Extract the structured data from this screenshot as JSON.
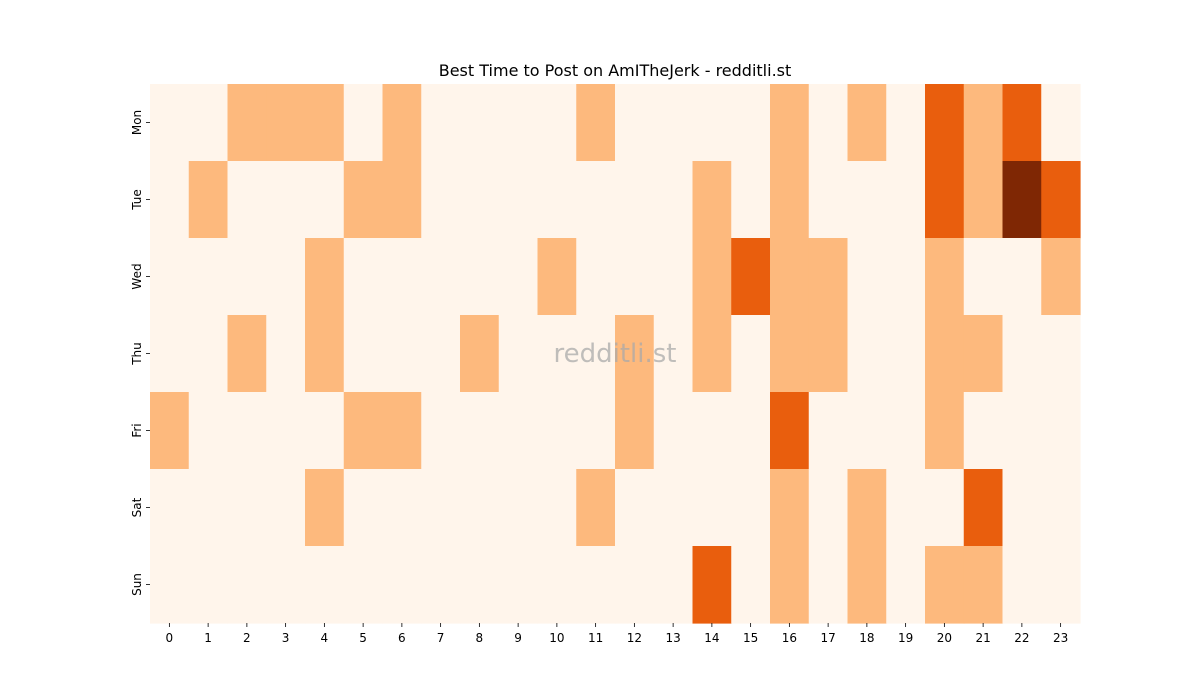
{
  "chart_data": {
    "type": "heatmap",
    "title": "Best Time to Post on AmITheJerk - redditli.st",
    "watermark": "redditli.st",
    "x_categories": [
      "0",
      "1",
      "2",
      "3",
      "4",
      "5",
      "6",
      "7",
      "8",
      "9",
      "10",
      "11",
      "12",
      "13",
      "14",
      "15",
      "16",
      "17",
      "18",
      "19",
      "20",
      "21",
      "22",
      "23"
    ],
    "y_categories": [
      "Mon",
      "Tue",
      "Wed",
      "Thu",
      "Fri",
      "Sat",
      "Sun"
    ],
    "values": [
      [
        0,
        0,
        1,
        1,
        1,
        0,
        1,
        0,
        0,
        0,
        0,
        1,
        0,
        0,
        0,
        0,
        1,
        0,
        1,
        0,
        2,
        1,
        2,
        0
      ],
      [
        0,
        1,
        0,
        0,
        0,
        1,
        1,
        0,
        0,
        0,
        0,
        0,
        0,
        0,
        1,
        0,
        1,
        0,
        0,
        0,
        2,
        1,
        3,
        2
      ],
      [
        0,
        0,
        0,
        0,
        1,
        0,
        0,
        0,
        0,
        0,
        1,
        0,
        0,
        0,
        1,
        2,
        1,
        1,
        0,
        0,
        1,
        0,
        0,
        1
      ],
      [
        0,
        0,
        1,
        0,
        1,
        0,
        0,
        0,
        1,
        0,
        0,
        0,
        1,
        0,
        1,
        0,
        1,
        1,
        0,
        0,
        1,
        1,
        0,
        0
      ],
      [
        1,
        0,
        0,
        0,
        0,
        1,
        1,
        0,
        0,
        0,
        0,
        0,
        1,
        0,
        0,
        0,
        2,
        0,
        0,
        0,
        1,
        0,
        0,
        0
      ],
      [
        0,
        0,
        0,
        0,
        1,
        0,
        0,
        0,
        0,
        0,
        0,
        1,
        0,
        0,
        0,
        0,
        1,
        0,
        1,
        0,
        0,
        2,
        0,
        0
      ],
      [
        0,
        0,
        0,
        0,
        0,
        0,
        0,
        0,
        0,
        0,
        0,
        0,
        0,
        0,
        2,
        0,
        1,
        0,
        1,
        0,
        1,
        1,
        0,
        0
      ]
    ],
    "color_scale": [
      "#fff5eb",
      "#fdb97d",
      "#e95e0d",
      "#7f2704"
    ],
    "legend": "none",
    "grid": false
  }
}
